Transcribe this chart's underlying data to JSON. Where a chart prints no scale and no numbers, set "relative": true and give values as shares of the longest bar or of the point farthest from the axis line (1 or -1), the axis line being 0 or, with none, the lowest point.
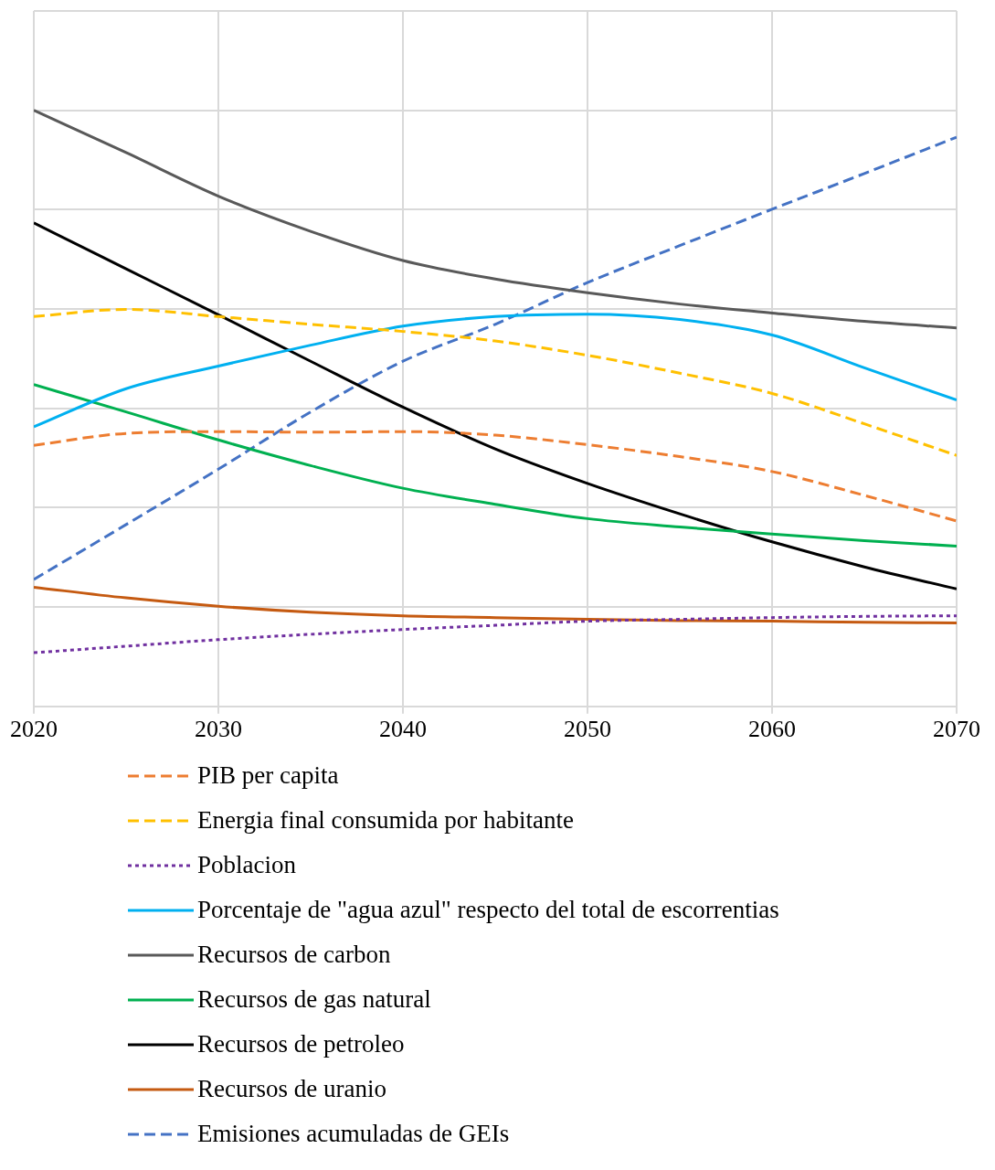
{
  "chart_data": {
    "type": "line",
    "relative": true,
    "x": [
      2020,
      2025,
      2030,
      2035,
      2040,
      2045,
      2050,
      2055,
      2060,
      2065,
      2070
    ],
    "xlim": [
      2020,
      2070
    ],
    "xticks": [
      2020,
      2030,
      2040,
      2050,
      2060,
      2070
    ],
    "grid": true,
    "legend": "bottom",
    "marker": "none",
    "series": [
      {
        "name": "PIB per capita",
        "color": "#ed7d31",
        "line_style": "dashed",
        "values": [
          0.438,
          0.458,
          0.461,
          0.46,
          0.461,
          0.455,
          0.439,
          0.419,
          0.394,
          0.354,
          0.311
        ]
      },
      {
        "name": "Energia final consumida por habitante",
        "color": "#ffc000",
        "line_style": "dashed",
        "values": [
          0.654,
          0.666,
          0.654,
          0.641,
          0.629,
          0.613,
          0.589,
          0.559,
          0.525,
          0.474,
          0.421
        ]
      },
      {
        "name": "Poblacion",
        "color": "#7030a0",
        "line_style": "dotted",
        "values": [
          0.09,
          0.101,
          0.112,
          0.121,
          0.129,
          0.136,
          0.143,
          0.146,
          0.149,
          0.151,
          0.152
        ]
      },
      {
        "name": "Porcentaje de \"agua azul\" respecto del total de escorrentias",
        "color": "#00b0f0",
        "line_style": "solid",
        "values": [
          0.469,
          0.533,
          0.571,
          0.606,
          0.638,
          0.654,
          0.658,
          0.649,
          0.623,
          0.568,
          0.514
        ]
      },
      {
        "name": "Recursos de carbon",
        "color": "#595959",
        "line_style": "solid",
        "values": [
          1.0,
          0.929,
          0.856,
          0.797,
          0.748,
          0.717,
          0.694,
          0.675,
          0.66,
          0.646,
          0.635
        ]
      },
      {
        "name": "Recursos de gas natural",
        "color": "#00b050",
        "line_style": "solid",
        "values": [
          0.54,
          0.494,
          0.447,
          0.404,
          0.366,
          0.339,
          0.315,
          0.301,
          0.289,
          0.278,
          0.269
        ]
      },
      {
        "name": "Recursos de petroleo",
        "color": "#000000",
        "line_style": "solid",
        "values": [
          0.811,
          0.734,
          0.657,
          0.579,
          0.502,
          0.432,
          0.374,
          0.323,
          0.276,
          0.234,
          0.197
        ]
      },
      {
        "name": "Recursos de uranio",
        "color": "#c55a11",
        "line_style": "solid",
        "values": [
          0.2,
          0.182,
          0.168,
          0.158,
          0.152,
          0.149,
          0.146,
          0.144,
          0.143,
          0.141,
          0.14
        ]
      },
      {
        "name": "Emisiones acumuladas de GEIs",
        "color": "#4472c4",
        "line_style": "dashed",
        "values": [
          0.213,
          0.305,
          0.398,
          0.494,
          0.579,
          0.641,
          0.711,
          0.773,
          0.834,
          0.894,
          0.955
        ]
      }
    ]
  }
}
